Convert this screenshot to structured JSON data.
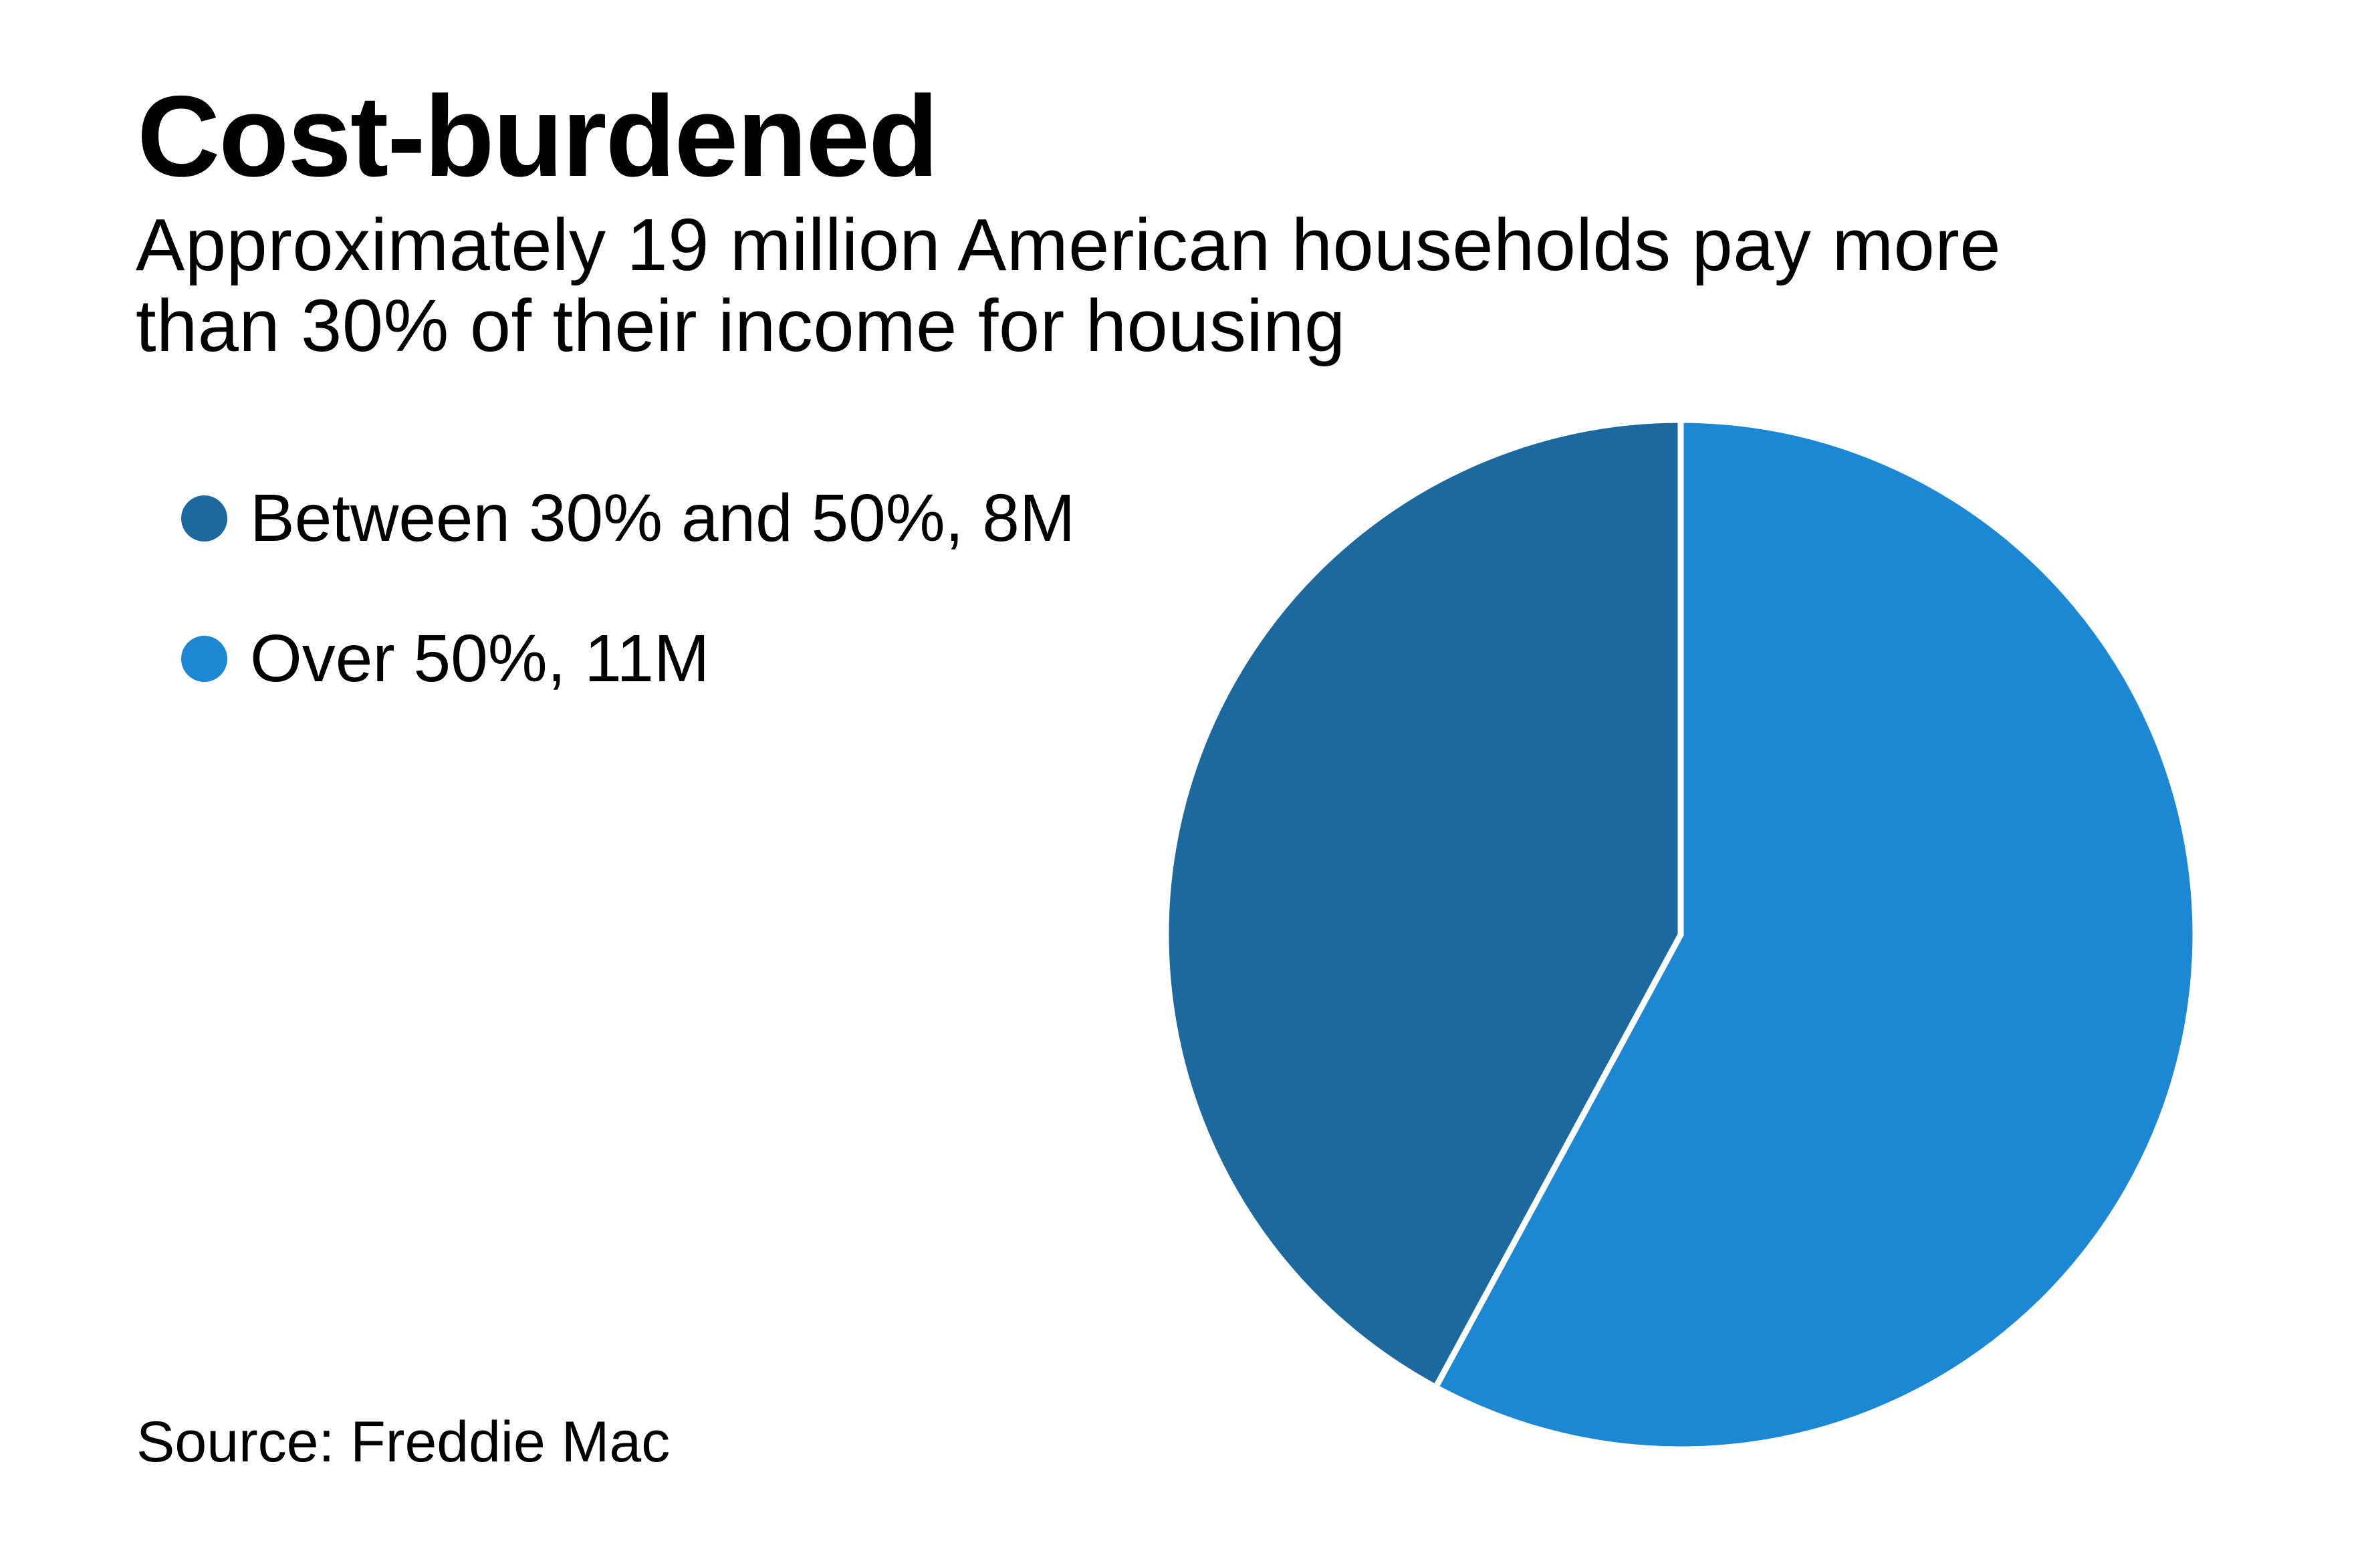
{
  "header": {
    "title": "Cost-burdened",
    "subtitle_lines": [
      "Approximately 19 million American households pay more",
      "than 30% of their income for housing"
    ]
  },
  "legend": {
    "items": [
      {
        "label": "Between 30% and 50%, 8M",
        "color": "#1b699f"
      },
      {
        "label": "Over 50%, 11M",
        "color": "#1c87d2"
      }
    ]
  },
  "footer": {
    "source": "Source: Freddie Mac"
  },
  "chart_data": {
    "type": "pie",
    "title": "Cost-burdened",
    "subtitle": "Approximately 19 million American households pay more than 30% of their income for housing",
    "unit": "million households",
    "categories": [
      "Between 30% and 50%",
      "Over 50%"
    ],
    "values": [
      8,
      11
    ],
    "labels": [
      "Between 30% and 50%, 8M",
      "Over 50%, 11M"
    ],
    "colors": [
      "#1b699f",
      "#1c87d2"
    ],
    "total": 19,
    "start_angle_deg": 0,
    "direction": "slice 'Over 50%' clockwise from 12 o'clock; 'Between 30% and 50%' counter-clockwise from 12 o'clock",
    "legend_position": "top-left",
    "source": "Source: Freddie Mac"
  }
}
